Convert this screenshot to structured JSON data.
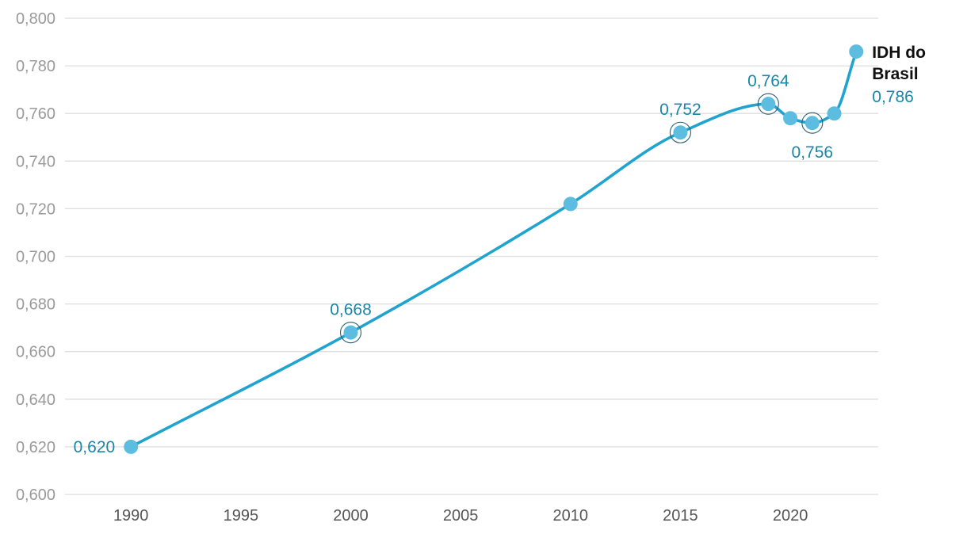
{
  "chart_data": {
    "type": "line",
    "title": "",
    "xlabel": "",
    "ylabel": "",
    "xlim": [
      1987,
      2024
    ],
    "ylim": [
      0.6,
      0.8
    ],
    "x_ticks": [
      {
        "value": 1990,
        "label": "1990"
      },
      {
        "value": 1995,
        "label": "1995"
      },
      {
        "value": 2000,
        "label": "2000"
      },
      {
        "value": 2005,
        "label": "2005"
      },
      {
        "value": 2010,
        "label": "2010"
      },
      {
        "value": 2015,
        "label": "2015"
      },
      {
        "value": 2020,
        "label": "2020"
      }
    ],
    "y_ticks": [
      {
        "value": 0.6,
        "label": "0,600"
      },
      {
        "value": 0.62,
        "label": "0,620"
      },
      {
        "value": 0.64,
        "label": "0,640"
      },
      {
        "value": 0.66,
        "label": "0,660"
      },
      {
        "value": 0.68,
        "label": "0,680"
      },
      {
        "value": 0.7,
        "label": "0,700"
      },
      {
        "value": 0.72,
        "label": "0,720"
      },
      {
        "value": 0.74,
        "label": "0,740"
      },
      {
        "value": 0.76,
        "label": "0,760"
      },
      {
        "value": 0.78,
        "label": "0,780"
      },
      {
        "value": 0.8,
        "label": "0,800"
      }
    ],
    "grid": true,
    "series": [
      {
        "name": "IDH do Brasil",
        "name_lines": [
          "IDH do",
          "Brasil"
        ],
        "color": "#1fa3cf",
        "marker_color": "#5cbde0",
        "x": [
          1990,
          2000,
          2010,
          2015,
          2019,
          2020,
          2021,
          2022,
          2023
        ],
        "y": [
          0.62,
          0.668,
          0.722,
          0.752,
          0.764,
          0.758,
          0.756,
          0.76,
          0.786
        ]
      }
    ],
    "annotations": [
      {
        "x": 1990,
        "y": 0.62,
        "text": "0,620",
        "position": "left",
        "ring": false
      },
      {
        "x": 2000,
        "y": 0.668,
        "text": "0,668",
        "position": "above",
        "ring": true
      },
      {
        "x": 2015,
        "y": 0.752,
        "text": "0,752",
        "position": "above",
        "ring": true
      },
      {
        "x": 2019,
        "y": 0.764,
        "text": "0,764",
        "position": "above",
        "ring": true
      },
      {
        "x": 2021,
        "y": 0.756,
        "text": "0,756",
        "position": "below",
        "ring": true
      },
      {
        "x": 2023,
        "y": 0.786,
        "text": "0,786",
        "position": "right-below",
        "ring": false
      }
    ],
    "label_color": "#1a86a8"
  }
}
